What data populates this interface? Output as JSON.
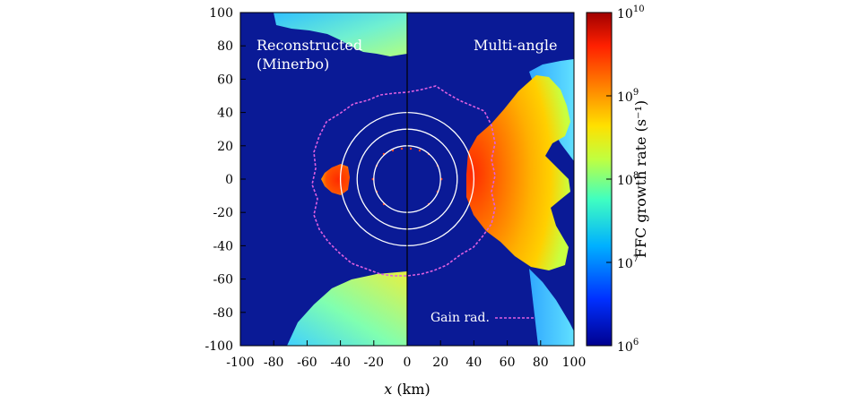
{
  "chart_data": {
    "type": "heatmap",
    "xlabel": "x (km)",
    "xlim": [
      -100,
      100
    ],
    "ylim": [
      -100,
      100
    ],
    "x_ticks": [
      "-100",
      "-80",
      "-60",
      "-40",
      "-20",
      "0",
      "20",
      "40",
      "60",
      "80",
      "100"
    ],
    "y_ticks": [
      "100",
      "80",
      "60",
      "40",
      "20",
      "0",
      "-20",
      "-40",
      "-60",
      "-80",
      "-100"
    ],
    "panels": [
      {
        "label_line1": "Reconstructed",
        "label_line2": "(Minerbo)"
      },
      {
        "label_line1": "Multi-angle",
        "label_line2": ""
      }
    ],
    "legend": {
      "gain_label": "Gain rad.",
      "gain_color": "#e060e0"
    },
    "contour_radii_km": [
      20,
      30,
      40
    ],
    "colorbar": {
      "label": "FFC growth rate (s⁻¹)",
      "scale": "log",
      "ticks": [
        {
          "base": "10",
          "exp": "10"
        },
        {
          "base": "10",
          "exp": "9"
        },
        {
          "base": "10",
          "exp": "8"
        },
        {
          "base": "10",
          "exp": "7"
        },
        {
          "base": "10",
          "exp": "6"
        }
      ],
      "colors": [
        "#00008f",
        "#0030ff",
        "#00b0ff",
        "#40ffc0",
        "#c0ff40",
        "#ffe000",
        "#ff8000",
        "#ff2000",
        "#a00000"
      ]
    },
    "background_color": "#0a1a96"
  }
}
